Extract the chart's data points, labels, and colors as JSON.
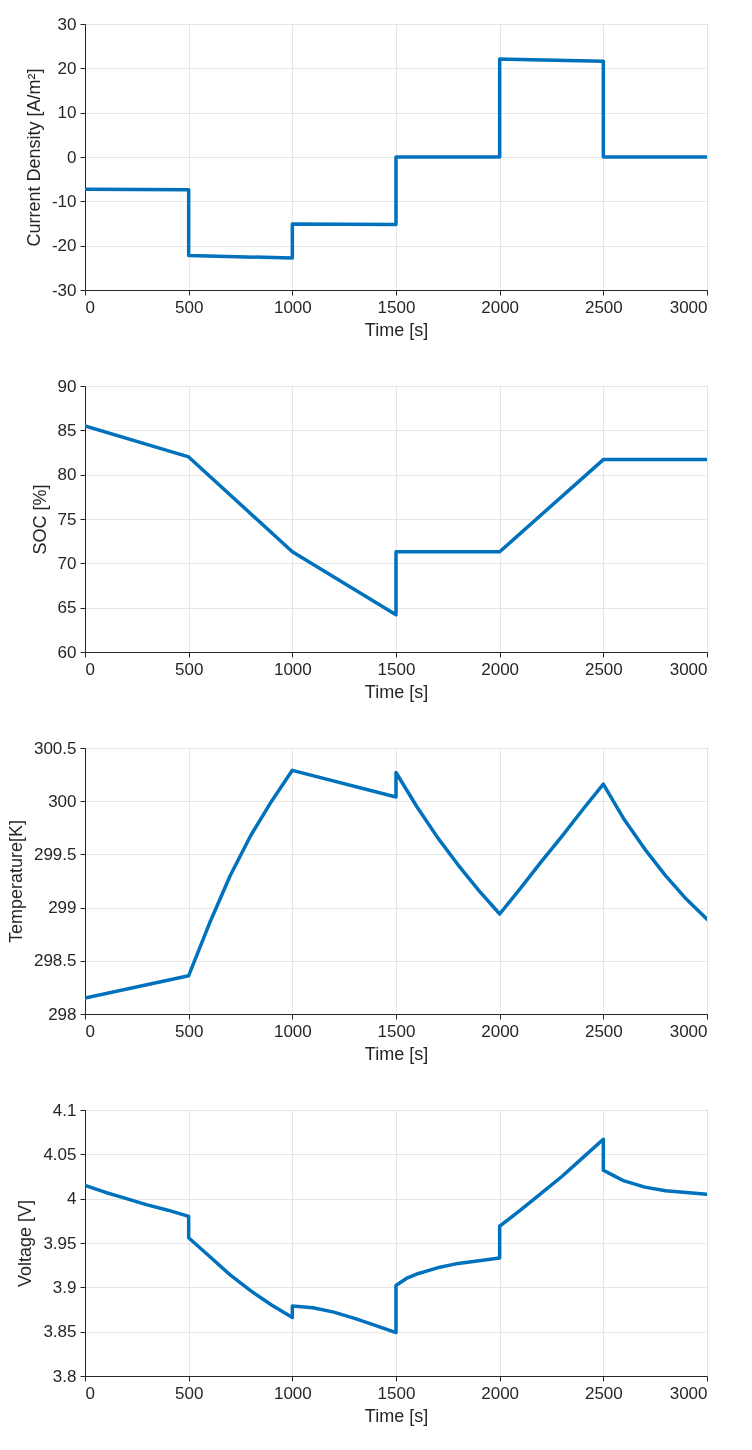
{
  "chart_data": [
    {
      "type": "line",
      "xlabel": "Time [s]",
      "ylabel": "Current Density [A/m²]",
      "grid": true,
      "xlim": [
        0,
        3000
      ],
      "xticks": [
        0,
        500,
        1000,
        1500,
        2000,
        2500,
        3000
      ],
      "ylim": [
        -30,
        30
      ],
      "yticks": [
        -30,
        -20,
        -10,
        0,
        10,
        20,
        30
      ],
      "series": [
        {
          "color": "#0072bd",
          "x": [
            0,
            500,
            500,
            1000,
            1000,
            1500,
            1500,
            2000,
            2000,
            2500,
            2500,
            3000
          ],
          "values": [
            -7.3,
            -7.4,
            -22.2,
            -22.8,
            -15.1,
            -15.2,
            0,
            0,
            22.1,
            21.6,
            0,
            0
          ]
        }
      ]
    },
    {
      "type": "line",
      "xlabel": "Time [s]",
      "ylabel": "SOC [%]",
      "grid": true,
      "xlim": [
        0,
        3000
      ],
      "xticks": [
        0,
        500,
        1000,
        1500,
        2000,
        2500,
        3000
      ],
      "ylim": [
        60,
        90
      ],
      "yticks": [
        60,
        65,
        70,
        75,
        80,
        85,
        90
      ],
      "series": [
        {
          "color": "#0072bd",
          "x": [
            0,
            500,
            1000,
            1500,
            1500,
            2000,
            2500,
            3000
          ],
          "values": [
            85.5,
            82,
            71.3,
            64.2,
            71.3,
            71.3,
            81.7,
            81.7
          ]
        }
      ]
    },
    {
      "type": "line",
      "xlabel": "Time [s]",
      "ylabel": "Temperature[K]",
      "grid": true,
      "xlim": [
        0,
        3000
      ],
      "xticks": [
        0,
        500,
        1000,
        1500,
        2000,
        2500,
        3000
      ],
      "ylim": [
        298,
        300.5
      ],
      "yticks": [
        298,
        298.5,
        299,
        299.5,
        300,
        300.5
      ],
      "series": [
        {
          "color": "#0072bd",
          "x": [
            0,
            500,
            600,
            700,
            800,
            900,
            1000,
            1500,
            1500,
            1600,
            1700,
            1800,
            1900,
            2000,
            2100,
            2200,
            2300,
            2400,
            2500,
            2600,
            2700,
            2800,
            2900,
            3000
          ],
          "values": [
            298.15,
            298.36,
            298.85,
            299.3,
            299.68,
            300.0,
            300.29,
            300.04,
            300.27,
            299.95,
            299.66,
            299.4,
            299.16,
            298.94,
            299.18,
            299.43,
            299.67,
            299.92,
            300.16,
            299.83,
            299.55,
            299.3,
            299.08,
            298.89
          ]
        }
      ]
    },
    {
      "type": "line",
      "xlabel": "Time [s]",
      "ylabel": "Voltage [V]",
      "grid": true,
      "xlim": [
        0,
        3000
      ],
      "xticks": [
        0,
        500,
        1000,
        1500,
        2000,
        2500,
        3000
      ],
      "ylim": [
        3.8,
        4.1
      ],
      "yticks": [
        3.8,
        3.85,
        3.9,
        3.95,
        4,
        4.05,
        4.1
      ],
      "series": [
        {
          "color": "#0072bd",
          "x": [
            0,
            100,
            200,
            300,
            400,
            500,
            500,
            600,
            700,
            800,
            900,
            1000,
            1000,
            1100,
            1200,
            1300,
            1400,
            1500,
            1500,
            1550,
            1600,
            1700,
            1800,
            1900,
            2000,
            2000,
            2100,
            2200,
            2300,
            2400,
            2500,
            2500,
            2550,
            2600,
            2700,
            2800,
            2900,
            3000
          ],
          "values": [
            4.015,
            4.007,
            4.0,
            3.993,
            3.987,
            3.98,
            3.956,
            3.935,
            3.914,
            3.896,
            3.88,
            3.866,
            3.879,
            3.877,
            3.872,
            3.865,
            3.857,
            3.849,
            3.902,
            3.91,
            3.915,
            3.922,
            3.927,
            3.93,
            3.933,
            3.969,
            3.987,
            4.006,
            4.025,
            4.046,
            4.067,
            4.032,
            4.026,
            4.02,
            4.013,
            4.009,
            4.007,
            4.005
          ]
        }
      ]
    }
  ]
}
